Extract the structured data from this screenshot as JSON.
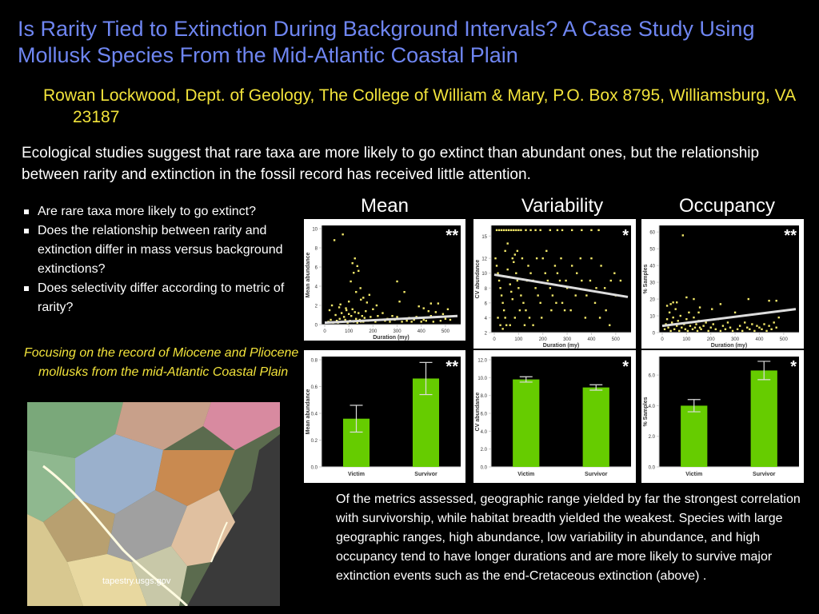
{
  "header": {
    "title": "Is Rarity Tied to Extinction During Background Intervals? A Case Study Using Mollusk Species From the Mid-Atlantic Coastal Plain",
    "author": "Rowan Lockwood, Dept. of Geology, The College of William & Mary, P.O. Box 8795, Williamsburg, VA 23187"
  },
  "intro": "Ecological studies suggest that rare taxa are more likely to go extinct than abundant ones, but the relationship between rarity and extinction in the fossil record has received little attention.",
  "bullets": [
    "Are rare taxa more likely to go extinct?",
    "Does the relationship between rarity and extinction differ in mass versus background extinctions?",
    "Does selectivity differ according to metric of rarity?"
  ],
  "focus": "Focusing on the record of Miocene and Pliocene mollusks from the mid-Atlantic Coastal Plain",
  "map": {
    "source": "tapestry.usgs.gov"
  },
  "conclusion": "Of the metrics assessed, geographic range yielded by far the strongest correlation with survivorship, while habitat breadth yielded the weakest. Species with large geographic ranges, high abundance, low variability in abundance, and high occupancy tend to have longer durations and are more likely to survive major extinction events such as the end-Cretaceous extinction (above) .",
  "column_titles": [
    "Mean",
    "Variability",
    "Occupancy"
  ],
  "colors": {
    "title": "#6f86f2",
    "accent": "#f2e33b",
    "bar": "#66cc00",
    "point": "#f2e86a",
    "trend": "#dddddd"
  },
  "chart_data": [
    {
      "type": "scatter",
      "title": "",
      "xlabel": "Duration (my)",
      "ylabel": "Mean abundance",
      "significance": "**",
      "xlim": [
        0,
        550
      ],
      "ylim": [
        0,
        10
      ],
      "xticks": [
        "0",
        "100",
        "200",
        "300",
        "400",
        "500"
      ],
      "yticks": [
        "0",
        "2",
        "4",
        "6",
        "8",
        "10"
      ],
      "trend": [
        [
          0,
          0.2
        ],
        [
          550,
          0.9
        ]
      ],
      "points": [
        [
          15,
          0.3
        ],
        [
          20,
          1.5
        ],
        [
          25,
          0.5
        ],
        [
          30,
          2
        ],
        [
          35,
          0.2
        ],
        [
          40,
          8.8
        ],
        [
          45,
          1
        ],
        [
          50,
          0.4
        ],
        [
          55,
          0.2
        ],
        [
          60,
          1.8
        ],
        [
          62,
          0.6
        ],
        [
          65,
          2.1
        ],
        [
          70,
          1.2
        ],
        [
          75,
          9.4
        ],
        [
          78,
          0.3
        ],
        [
          80,
          0.8
        ],
        [
          85,
          0.5
        ],
        [
          90,
          1.5
        ],
        [
          95,
          0.2
        ],
        [
          100,
          1.1
        ],
        [
          105,
          0.4
        ],
        [
          108,
          4.5
        ],
        [
          110,
          0.9
        ],
        [
          115,
          1.6
        ],
        [
          120,
          0.3
        ],
        [
          125,
          1.3
        ],
        [
          130,
          0.6
        ],
        [
          135,
          0.2
        ],
        [
          140,
          1.2
        ],
        [
          145,
          0.5
        ],
        [
          150,
          0.3
        ],
        [
          155,
          0.9
        ],
        [
          160,
          0.3
        ],
        [
          165,
          0.7
        ],
        [
          170,
          1.4
        ],
        [
          180,
          0.4
        ],
        [
          190,
          0.8
        ],
        [
          200,
          1.6
        ],
        [
          210,
          0.3
        ],
        [
          220,
          0.9
        ],
        [
          230,
          0.5
        ],
        [
          240,
          1.2
        ],
        [
          250,
          0.4
        ],
        [
          260,
          0.6
        ],
        [
          270,
          0.3
        ],
        [
          280,
          0.9
        ],
        [
          290,
          0.5
        ],
        [
          300,
          0.8
        ],
        [
          310,
          2.4
        ],
        [
          320,
          0.3
        ],
        [
          330,
          0.6
        ],
        [
          340,
          0.4
        ],
        [
          350,
          0.7
        ],
        [
          360,
          0.3
        ],
        [
          370,
          0.5
        ],
        [
          380,
          0.8
        ],
        [
          390,
          1.9
        ],
        [
          400,
          0.3
        ],
        [
          410,
          0.5
        ],
        [
          420,
          0.4
        ],
        [
          430,
          1.4
        ],
        [
          440,
          0.9
        ],
        [
          450,
          0.3
        ],
        [
          460,
          1.3
        ],
        [
          470,
          2.2
        ],
        [
          480,
          0.4
        ],
        [
          490,
          1.1
        ],
        [
          500,
          0.6
        ],
        [
          510,
          1.6
        ],
        [
          520,
          0.5
        ],
        [
          125,
          6.9
        ],
        [
          115,
          6.4
        ],
        [
          135,
          6.1
        ],
        [
          120,
          5.4
        ],
        [
          140,
          5.6
        ],
        [
          148,
          3.8
        ],
        [
          130,
          3.4
        ],
        [
          150,
          2.6
        ],
        [
          160,
          2.8
        ],
        [
          185,
          3.1
        ],
        [
          100,
          2.4
        ],
        [
          88,
          1.7
        ],
        [
          175,
          2.3
        ],
        [
          215,
          2.0
        ],
        [
          300,
          4.5
        ],
        [
          330,
          3.4
        ],
        [
          410,
          1.7
        ],
        [
          440,
          2.2
        ]
      ]
    },
    {
      "type": "scatter",
      "title": "",
      "xlabel": "Duration (my)",
      "ylabel": "CV abundance",
      "significance": "*",
      "xlim": [
        0,
        550
      ],
      "ylim": [
        2,
        16
      ],
      "xticks": [
        "0",
        "100",
        "200",
        "300",
        "400",
        "500"
      ],
      "yticks": [
        "2",
        "4",
        "6",
        "8",
        "10",
        "12",
        "15"
      ],
      "trend": [
        [
          0,
          9.8
        ],
        [
          550,
          6.8
        ]
      ],
      "points": [
        [
          10,
          15.8
        ],
        [
          20,
          15.8
        ],
        [
          30,
          15.8
        ],
        [
          40,
          15.8
        ],
        [
          50,
          15.8
        ],
        [
          60,
          15.8
        ],
        [
          70,
          15.8
        ],
        [
          80,
          15.8
        ],
        [
          90,
          15.8
        ],
        [
          100,
          15.8
        ],
        [
          110,
          15.8
        ],
        [
          130,
          15.8
        ],
        [
          150,
          15.8
        ],
        [
          170,
          15.8
        ],
        [
          190,
          15.8
        ],
        [
          230,
          15.8
        ],
        [
          260,
          15.8
        ],
        [
          280,
          15.8
        ],
        [
          320,
          15.8
        ],
        [
          360,
          15.8
        ],
        [
          400,
          15.8
        ],
        [
          430,
          15.8
        ],
        [
          5,
          12
        ],
        [
          10,
          11
        ],
        [
          15,
          10
        ],
        [
          20,
          9
        ],
        [
          25,
          8
        ],
        [
          30,
          7
        ],
        [
          35,
          6
        ],
        [
          40,
          5
        ],
        [
          45,
          4
        ],
        [
          50,
          3
        ],
        [
          55,
          10.5
        ],
        [
          60,
          9.5
        ],
        [
          65,
          8.5
        ],
        [
          70,
          7.5
        ],
        [
          75,
          6.5
        ],
        [
          80,
          11.5
        ],
        [
          85,
          12.5
        ],
        [
          90,
          10
        ],
        [
          95,
          9
        ],
        [
          100,
          8
        ],
        [
          110,
          7
        ],
        [
          120,
          6
        ],
        [
          130,
          5
        ],
        [
          140,
          11
        ],
        [
          150,
          10
        ],
        [
          160,
          9
        ],
        [
          170,
          8
        ],
        [
          180,
          7
        ],
        [
          190,
          6
        ],
        [
          200,
          12
        ],
        [
          210,
          10
        ],
        [
          220,
          9
        ],
        [
          230,
          8
        ],
        [
          240,
          7
        ],
        [
          250,
          11
        ],
        [
          260,
          10
        ],
        [
          270,
          9
        ],
        [
          280,
          6
        ],
        [
          290,
          5
        ],
        [
          300,
          8
        ],
        [
          320,
          11
        ],
        [
          340,
          10
        ],
        [
          360,
          9
        ],
        [
          380,
          7
        ],
        [
          400,
          12
        ],
        [
          420,
          8
        ],
        [
          440,
          11
        ],
        [
          460,
          5
        ],
        [
          480,
          9
        ],
        [
          500,
          7
        ],
        [
          15,
          4
        ],
        [
          25,
          3
        ],
        [
          35,
          2.5
        ],
        [
          45,
          13
        ],
        [
          55,
          14
        ],
        [
          65,
          3
        ],
        [
          75,
          12
        ],
        [
          85,
          4
        ],
        [
          95,
          13
        ],
        [
          105,
          5
        ],
        [
          115,
          12
        ],
        [
          125,
          3
        ],
        [
          135,
          9
        ],
        [
          145,
          4
        ],
        [
          160,
          3
        ],
        [
          175,
          12
        ],
        [
          195,
          4
        ],
        [
          215,
          13
        ],
        [
          235,
          5
        ],
        [
          255,
          6
        ],
        [
          275,
          12
        ],
        [
          295,
          9
        ],
        [
          315,
          5
        ],
        [
          335,
          7
        ],
        [
          355,
          12
        ],
        [
          375,
          4
        ],
        [
          395,
          9
        ],
        [
          415,
          6
        ],
        [
          435,
          4
        ],
        [
          455,
          8
        ],
        [
          475,
          3
        ],
        [
          495,
          10
        ],
        [
          520,
          9
        ]
      ]
    },
    {
      "type": "scatter",
      "title": "",
      "xlabel": "Duration (my)",
      "ylabel": "% Samples",
      "significance": "**",
      "xlim": [
        0,
        550
      ],
      "ylim": [
        0,
        62
      ],
      "xticks": [
        "0",
        "100",
        "200",
        "300",
        "400",
        "500"
      ],
      "yticks": [
        "0",
        "10",
        "20",
        "30",
        "40",
        "50",
        "60"
      ],
      "trend": [
        [
          0,
          4
        ],
        [
          550,
          14
        ]
      ],
      "points": [
        [
          10,
          2
        ],
        [
          15,
          5
        ],
        [
          20,
          8
        ],
        [
          25,
          3
        ],
        [
          30,
          12
        ],
        [
          35,
          1
        ],
        [
          40,
          6
        ],
        [
          45,
          9
        ],
        [
          50,
          2
        ],
        [
          55,
          14
        ],
        [
          60,
          4
        ],
        [
          65,
          7
        ],
        [
          70,
          1
        ],
        [
          75,
          10
        ],
        [
          80,
          3
        ],
        [
          85,
          58
        ],
        [
          90,
          5
        ],
        [
          95,
          2
        ],
        [
          100,
          8
        ],
        [
          105,
          1
        ],
        [
          110,
          12
        ],
        [
          115,
          4
        ],
        [
          120,
          6
        ],
        [
          125,
          2
        ],
        [
          130,
          9
        ],
        [
          135,
          3
        ],
        [
          140,
          5
        ],
        [
          145,
          1
        ],
        [
          150,
          7
        ],
        [
          155,
          3
        ],
        [
          160,
          2
        ],
        [
          170,
          4
        ],
        [
          180,
          6
        ],
        [
          190,
          1
        ],
        [
          200,
          3
        ],
        [
          210,
          5
        ],
        [
          220,
          2
        ],
        [
          230,
          8
        ],
        [
          240,
          1
        ],
        [
          250,
          4
        ],
        [
          260,
          2
        ],
        [
          270,
          6
        ],
        [
          280,
          3
        ],
        [
          290,
          1
        ],
        [
          300,
          12
        ],
        [
          310,
          2
        ],
        [
          320,
          4
        ],
        [
          330,
          1
        ],
        [
          340,
          6
        ],
        [
          350,
          3
        ],
        [
          360,
          2
        ],
        [
          370,
          5
        ],
        [
          380,
          1
        ],
        [
          390,
          4
        ],
        [
          400,
          3
        ],
        [
          410,
          2
        ],
        [
          420,
          5
        ],
        [
          430,
          1
        ],
        [
          440,
          4
        ],
        [
          450,
          2
        ],
        [
          460,
          6
        ],
        [
          470,
          3
        ],
        [
          480,
          9
        ],
        [
          500,
          13
        ],
        [
          440,
          19
        ],
        [
          355,
          20
        ],
        [
          470,
          19
        ],
        [
          130,
          20
        ],
        [
          100,
          21
        ],
        [
          60,
          18
        ],
        [
          45,
          18
        ],
        [
          20,
          16
        ],
        [
          35,
          17
        ],
        [
          155,
          15
        ],
        [
          205,
          14
        ],
        [
          150,
          12
        ],
        [
          215,
          8
        ],
        [
          240,
          17
        ]
      ]
    },
    {
      "type": "bar",
      "title": "",
      "xlabel": "",
      "ylabel": "Mean abundance",
      "significance": "**",
      "categories": [
        "Victim",
        "Survivor"
      ],
      "values": [
        0.36,
        0.66
      ],
      "errors": [
        0.1,
        0.12
      ],
      "ylim": [
        0,
        0.8
      ],
      "yticks": [
        "0.0",
        "0.2",
        "0.4",
        "0.6",
        "0.8"
      ]
    },
    {
      "type": "bar",
      "title": "",
      "xlabel": "",
      "ylabel": "CV abundance",
      "significance": "*",
      "categories": [
        "Victim",
        "Survivor"
      ],
      "values": [
        9.8,
        8.9
      ],
      "errors": [
        0.3,
        0.3
      ],
      "ylim": [
        0,
        12
      ],
      "yticks": [
        "0.0",
        "2.0",
        "4.0",
        "6.0",
        "8.0",
        "10.0",
        "12.0"
      ]
    },
    {
      "type": "bar",
      "title": "",
      "xlabel": "",
      "ylabel": "% Samples",
      "significance": "*",
      "categories": [
        "Victim",
        "Survivor"
      ],
      "values": [
        4.0,
        6.3
      ],
      "errors": [
        0.4,
        0.6
      ],
      "ylim": [
        0,
        7
      ],
      "yticks": [
        "0.0",
        "2.0",
        "4.0",
        "6.0"
      ]
    }
  ]
}
